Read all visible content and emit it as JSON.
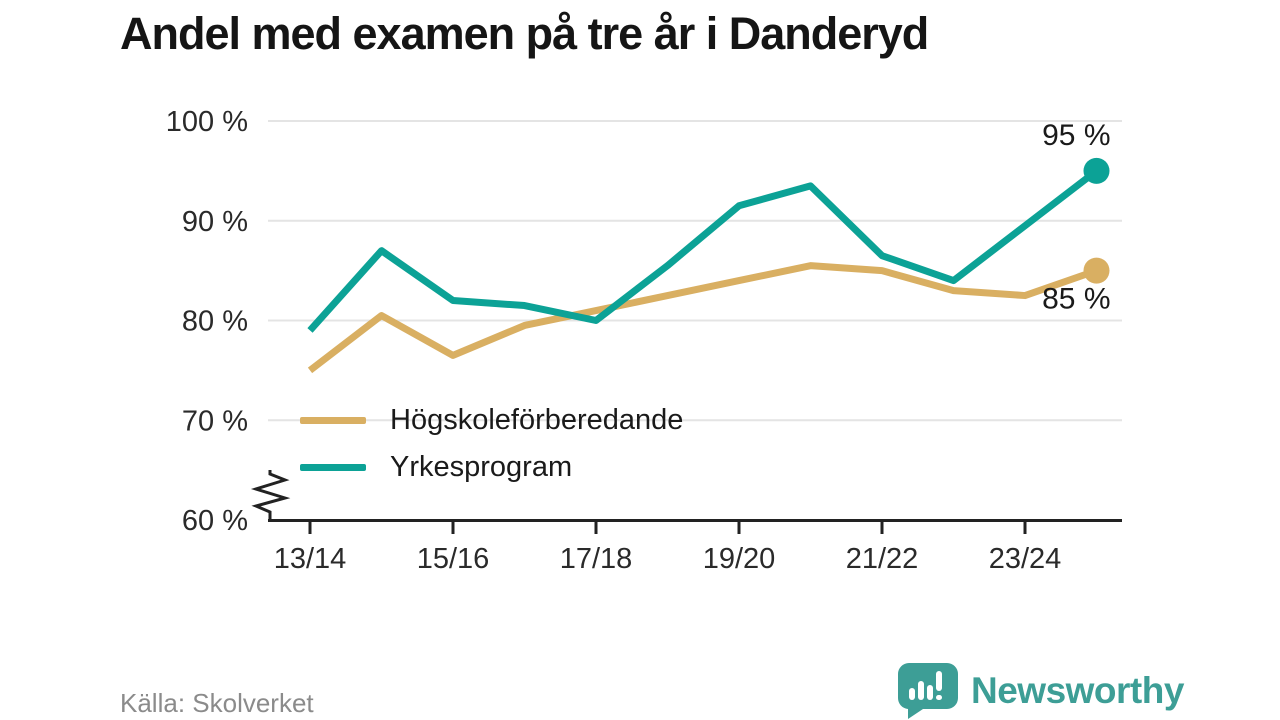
{
  "title": "Andel med examen på tre år i Danderyd",
  "source": "Källa: Skolverket",
  "branding": {
    "logo_text": "Newsworthy",
    "logo_icon": "bar-chart-speech-bubble-icon"
  },
  "colors": {
    "hogskoleforberedande": "#D9AF62",
    "yrkesprogram": "#0CA296",
    "grid": "#E4E4E4",
    "axis": "#222222",
    "text": "#2A2A2A",
    "label_text": "#1A1A1A",
    "muted_text": "#8B8B8B",
    "logo_teal": "#3D9E96"
  },
  "chart_data": {
    "type": "line",
    "title": "Andel med examen på tre år i Danderyd",
    "x": [
      "13/14",
      "14/15",
      "15/16",
      "16/17",
      "17/18",
      "18/19",
      "19/20",
      "20/21",
      "21/22",
      "22/23",
      "23/24",
      "24/25"
    ],
    "x_tick_labels": [
      "13/14",
      "15/16",
      "17/18",
      "19/20",
      "21/22",
      "23/24"
    ],
    "series": [
      {
        "name": "Högskoleförberedande",
        "color": "#D9AF62",
        "values": [
          75,
          80.5,
          76.5,
          79.5,
          81,
          82.5,
          84,
          85.5,
          85,
          83,
          82.5,
          85
        ],
        "end_value": 85,
        "end_label": "85 %"
      },
      {
        "name": "Yrkesprogram",
        "color": "#0CA296",
        "values": [
          79,
          87,
          82,
          81.5,
          80,
          85.5,
          91.5,
          93.5,
          86.5,
          84,
          89.5,
          95
        ],
        "end_value": 95,
        "end_label": "95 %"
      }
    ],
    "ylim": [
      60,
      100
    ],
    "yticks": [
      60,
      70,
      80,
      90,
      100
    ],
    "ytick_suffix": " %",
    "axis_break": true,
    "grid": "horizontal",
    "legend_position": "inside-bottom-left"
  }
}
